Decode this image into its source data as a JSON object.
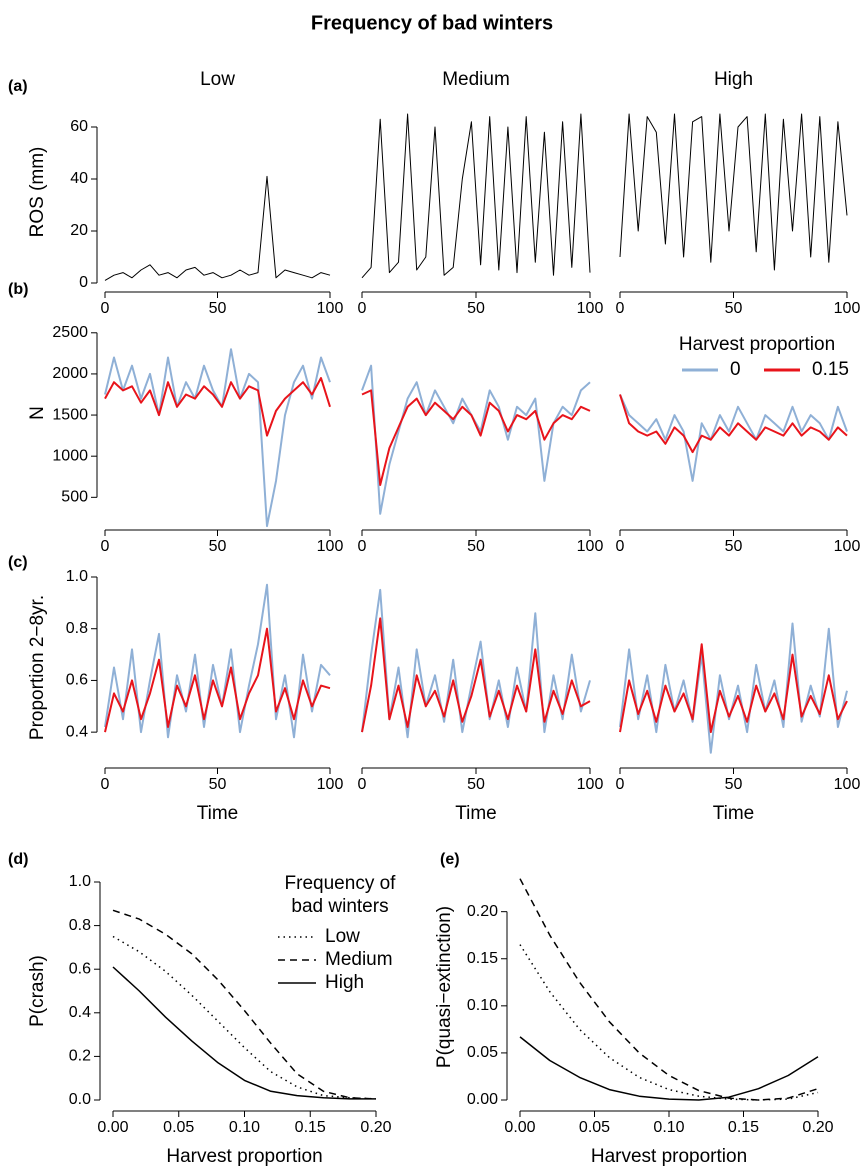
{
  "figure_title": "Frequency of bad winters",
  "chart_data": [
    {
      "type": "line",
      "panel_label": "(a)",
      "title": "Low",
      "ylabel": "ROS (mm)",
      "x": [
        0,
        4,
        8,
        12,
        16,
        20,
        24,
        28,
        32,
        36,
        40,
        44,
        48,
        52,
        56,
        60,
        64,
        68,
        72,
        76,
        80,
        84,
        88,
        92,
        96,
        100
      ],
      "series": [
        {
          "color": "#000000",
          "width": 1,
          "values": [
            1,
            3,
            4,
            2,
            5,
            7,
            3,
            4,
            2,
            5,
            6,
            3,
            4,
            2,
            3,
            5,
            3,
            4,
            41,
            2,
            5,
            4,
            3,
            2,
            4,
            3
          ]
        }
      ],
      "xlim": [
        0,
        100
      ],
      "xticks": [
        0,
        50,
        100
      ],
      "ylim": [
        0,
        70
      ],
      "yticks": [
        0,
        20,
        40,
        60
      ]
    },
    {
      "type": "line",
      "title": "Medium",
      "x": [
        0,
        4,
        8,
        12,
        16,
        20,
        24,
        28,
        32,
        36,
        40,
        44,
        48,
        52,
        56,
        60,
        64,
        68,
        72,
        76,
        80,
        84,
        88,
        92,
        96,
        100
      ],
      "series": [
        {
          "color": "#000000",
          "width": 1,
          "values": [
            2,
            6,
            63,
            4,
            8,
            65,
            5,
            10,
            60,
            3,
            6,
            40,
            62,
            7,
            64,
            5,
            60,
            4,
            64,
            8,
            58,
            3,
            62,
            6,
            65,
            4
          ]
        }
      ],
      "xlim": [
        0,
        100
      ],
      "xticks": [
        0,
        50,
        100
      ],
      "ylim": [
        0,
        70
      ],
      "yticks": []
    },
    {
      "type": "line",
      "title": "High",
      "x": [
        0,
        4,
        8,
        12,
        16,
        20,
        24,
        28,
        32,
        36,
        40,
        44,
        48,
        52,
        56,
        60,
        64,
        68,
        72,
        76,
        80,
        84,
        88,
        92,
        96,
        100
      ],
      "series": [
        {
          "color": "#000000",
          "width": 1,
          "values": [
            10,
            65,
            20,
            64,
            58,
            15,
            65,
            10,
            62,
            64,
            8,
            65,
            20,
            60,
            64,
            12,
            65,
            5,
            63,
            20,
            65,
            10,
            64,
            8,
            62,
            26
          ]
        }
      ],
      "xlim": [
        0,
        100
      ],
      "xticks": [
        0,
        50,
        100
      ],
      "ylim": [
        0,
        70
      ],
      "yticks": []
    },
    {
      "type": "line",
      "panel_label": "(b)",
      "ylabel": "N",
      "x": [
        0,
        4,
        8,
        12,
        16,
        20,
        24,
        28,
        32,
        36,
        40,
        44,
        48,
        52,
        56,
        60,
        64,
        68,
        72,
        76,
        80,
        84,
        88,
        92,
        96,
        100
      ],
      "series": [
        {
          "color": "#8fb0d6",
          "width": 2,
          "values": [
            1750,
            2200,
            1800,
            2100,
            1700,
            2000,
            1500,
            2200,
            1600,
            1900,
            1700,
            2100,
            1800,
            1600,
            2300,
            1700,
            2000,
            1900,
            150,
            700,
            1500,
            1900,
            2100,
            1700,
            2200,
            1900
          ]
        },
        {
          "color": "#e8141b",
          "width": 2,
          "values": [
            1700,
            1900,
            1800,
            1850,
            1650,
            1800,
            1500,
            1900,
            1600,
            1750,
            1700,
            1850,
            1750,
            1600,
            1900,
            1700,
            1850,
            1800,
            1250,
            1550,
            1700,
            1800,
            1900,
            1750,
            1950,
            1600
          ]
        }
      ],
      "xlim": [
        0,
        100
      ],
      "xticks": [
        0,
        50,
        100
      ],
      "ylim": [
        200,
        2850
      ],
      "yticks": [
        500,
        1000,
        1500,
        2000,
        2500
      ]
    },
    {
      "type": "line",
      "x": [
        0,
        4,
        8,
        12,
        16,
        20,
        24,
        28,
        32,
        36,
        40,
        44,
        48,
        52,
        56,
        60,
        64,
        68,
        72,
        76,
        80,
        84,
        88,
        92,
        96,
        100
      ],
      "series": [
        {
          "color": "#8fb0d6",
          "width": 2,
          "values": [
            1800,
            2100,
            300,
            900,
            1300,
            1700,
            1900,
            1500,
            1800,
            1600,
            1400,
            1700,
            1500,
            1300,
            1800,
            1600,
            1200,
            1600,
            1500,
            1700,
            700,
            1400,
            1600,
            1500,
            1800,
            1900
          ]
        },
        {
          "color": "#e8141b",
          "width": 2,
          "values": [
            1750,
            1800,
            650,
            1100,
            1350,
            1600,
            1700,
            1500,
            1650,
            1550,
            1450,
            1600,
            1500,
            1250,
            1650,
            1550,
            1300,
            1500,
            1450,
            1550,
            1200,
            1400,
            1500,
            1450,
            1600,
            1550
          ]
        }
      ],
      "xlim": [
        0,
        100
      ],
      "xticks": [
        0,
        50,
        100
      ],
      "ylim": [
        200,
        2850
      ],
      "yticks": []
    },
    {
      "type": "line",
      "legend_title": "Harvest proportion",
      "x": [
        0,
        4,
        8,
        12,
        16,
        20,
        24,
        28,
        32,
        36,
        40,
        44,
        48,
        52,
        56,
        60,
        64,
        68,
        72,
        76,
        80,
        84,
        88,
        92,
        96,
        100
      ],
      "series": [
        {
          "name": "0",
          "color": "#8fb0d6",
          "width": 2,
          "values": [
            1750,
            1500,
            1400,
            1300,
            1450,
            1200,
            1500,
            1300,
            700,
            1400,
            1200,
            1500,
            1300,
            1600,
            1400,
            1200,
            1500,
            1400,
            1300,
            1600,
            1300,
            1500,
            1400,
            1200,
            1600,
            1300
          ]
        },
        {
          "name": "0.15",
          "color": "#e8141b",
          "width": 2,
          "values": [
            1750,
            1400,
            1300,
            1250,
            1300,
            1150,
            1350,
            1250,
            1050,
            1250,
            1200,
            1350,
            1250,
            1400,
            1300,
            1200,
            1350,
            1300,
            1250,
            1400,
            1250,
            1350,
            1300,
            1200,
            1350,
            1250
          ]
        }
      ],
      "xlim": [
        0,
        100
      ],
      "xticks": [
        0,
        50,
        100
      ],
      "ylim": [
        200,
        2850
      ],
      "yticks": []
    },
    {
      "type": "line",
      "panel_label": "(c)",
      "ylabel": "Proportion 2−8yr.",
      "xlabel": "Time",
      "x": [
        0,
        4,
        8,
        12,
        16,
        20,
        24,
        28,
        32,
        36,
        40,
        44,
        48,
        52,
        56,
        60,
        64,
        68,
        72,
        76,
        80,
        84,
        88,
        92,
        96,
        100
      ],
      "series": [
        {
          "color": "#8fb0d6",
          "width": 2,
          "values": [
            0.42,
            0.65,
            0.45,
            0.72,
            0.4,
            0.6,
            0.78,
            0.38,
            0.62,
            0.48,
            0.7,
            0.42,
            0.66,
            0.5,
            0.72,
            0.4,
            0.58,
            0.74,
            0.97,
            0.45,
            0.62,
            0.38,
            0.7,
            0.48,
            0.66,
            0.62
          ]
        },
        {
          "color": "#e8141b",
          "width": 2,
          "values": [
            0.4,
            0.55,
            0.48,
            0.6,
            0.45,
            0.55,
            0.68,
            0.42,
            0.58,
            0.5,
            0.62,
            0.45,
            0.6,
            0.5,
            0.65,
            0.45,
            0.55,
            0.62,
            0.8,
            0.48,
            0.57,
            0.45,
            0.6,
            0.5,
            0.58,
            0.57
          ]
        }
      ],
      "xlim": [
        0,
        100
      ],
      "xticks": [
        0,
        50,
        100
      ],
      "ylim": [
        0.3,
        1.0
      ],
      "yticks": [
        0.4,
        0.6,
        0.8,
        {
          "value": 1.0,
          "label": "1.0"
        }
      ]
    },
    {
      "type": "line",
      "xlabel": "Time",
      "x": [
        0,
        4,
        8,
        12,
        16,
        20,
        24,
        28,
        32,
        36,
        40,
        44,
        48,
        52,
        56,
        60,
        64,
        68,
        72,
        76,
        80,
        84,
        88,
        92,
        96,
        100
      ],
      "series": [
        {
          "color": "#8fb0d6",
          "width": 2,
          "values": [
            0.4,
            0.7,
            0.95,
            0.45,
            0.65,
            0.38,
            0.72,
            0.5,
            0.62,
            0.44,
            0.68,
            0.4,
            0.58,
            0.75,
            0.45,
            0.6,
            0.42,
            0.65,
            0.48,
            0.86,
            0.4,
            0.62,
            0.45,
            0.7,
            0.48,
            0.6
          ]
        },
        {
          "color": "#e8141b",
          "width": 2,
          "values": [
            0.4,
            0.58,
            0.84,
            0.45,
            0.58,
            0.42,
            0.62,
            0.5,
            0.56,
            0.46,
            0.6,
            0.44,
            0.54,
            0.68,
            0.46,
            0.56,
            0.45,
            0.58,
            0.48,
            0.72,
            0.44,
            0.56,
            0.47,
            0.6,
            0.5,
            0.52
          ]
        }
      ],
      "xlim": [
        0,
        100
      ],
      "xticks": [
        0,
        50,
        100
      ],
      "ylim": [
        0.3,
        1.0
      ],
      "yticks": []
    },
    {
      "type": "line",
      "xlabel": "Time",
      "x": [
        0,
        4,
        8,
        12,
        16,
        20,
        24,
        28,
        32,
        36,
        40,
        44,
        48,
        52,
        56,
        60,
        64,
        68,
        72,
        76,
        80,
        84,
        88,
        92,
        96,
        100
      ],
      "series": [
        {
          "color": "#8fb0d6",
          "width": 2,
          "values": [
            0.42,
            0.72,
            0.45,
            0.62,
            0.4,
            0.66,
            0.48,
            0.6,
            0.44,
            0.7,
            0.32,
            0.62,
            0.45,
            0.58,
            0.4,
            0.66,
            0.48,
            0.6,
            0.42,
            0.82,
            0.44,
            0.58,
            0.46,
            0.8,
            0.42,
            0.56
          ]
        },
        {
          "color": "#e8141b",
          "width": 2,
          "values": [
            0.4,
            0.6,
            0.47,
            0.56,
            0.44,
            0.58,
            0.48,
            0.55,
            0.45,
            0.74,
            0.4,
            0.56,
            0.46,
            0.54,
            0.44,
            0.58,
            0.48,
            0.55,
            0.45,
            0.7,
            0.46,
            0.54,
            0.47,
            0.62,
            0.45,
            0.52
          ]
        }
      ],
      "xlim": [
        0,
        100
      ],
      "xticks": [
        0,
        50,
        100
      ],
      "ylim": [
        0.3,
        1.0
      ],
      "yticks": []
    },
    {
      "type": "line",
      "panel_label": "(d)",
      "ylabel": "P(crash)",
      "xlabel": "Harvest proportion",
      "legend_title": [
        "Frequency of",
        "bad winters"
      ],
      "x": [
        0,
        0.02,
        0.04,
        0.06,
        0.08,
        0.1,
        0.12,
        0.14,
        0.16,
        0.18,
        0.2
      ],
      "series": [
        {
          "name": "Low",
          "color": "#000000",
          "width": 1.5,
          "dash": "dotted",
          "values": [
            0.75,
            0.68,
            0.59,
            0.48,
            0.36,
            0.24,
            0.13,
            0.06,
            0.02,
            0.01,
            0.005
          ]
        },
        {
          "name": "Medium",
          "color": "#000000",
          "width": 1.5,
          "dash": "dashed",
          "values": [
            0.87,
            0.83,
            0.76,
            0.67,
            0.55,
            0.41,
            0.26,
            0.12,
            0.04,
            0.01,
            0.005
          ]
        },
        {
          "name": "High",
          "color": "#000000",
          "width": 1.5,
          "dash": "solid",
          "values": [
            0.61,
            0.5,
            0.38,
            0.27,
            0.17,
            0.09,
            0.04,
            0.02,
            0.01,
            0.005,
            0.005
          ]
        }
      ],
      "xlim": [
        0,
        0.2
      ],
      "xticks": [
        {
          "value": 0,
          "label": "0.00"
        },
        0.05,
        {
          "value": 0.1,
          "label": "0.10"
        },
        0.15,
        {
          "value": 0.2,
          "label": "0.20"
        }
      ],
      "ylim": [
        0,
        1
      ],
      "yticks": [
        {
          "value": 0,
          "label": "0.0"
        },
        0.2,
        0.4,
        0.6,
        0.8,
        {
          "value": 1,
          "label": "1.0"
        }
      ]
    },
    {
      "type": "line",
      "panel_label": "(e)",
      "ylabel": "P(quasi−extinction)",
      "xlabel": "Harvest proportion",
      "x": [
        0,
        0.02,
        0.04,
        0.06,
        0.08,
        0.1,
        0.12,
        0.14,
        0.16,
        0.18,
        0.2
      ],
      "series": [
        {
          "color": "#000000",
          "width": 1.5,
          "dash": "dotted",
          "values": [
            0.165,
            0.115,
            0.075,
            0.045,
            0.024,
            0.011,
            0.004,
            0.001,
            0,
            0.001,
            0.008
          ]
        },
        {
          "color": "#000000",
          "width": 1.5,
          "dash": "dashed",
          "values": [
            0.235,
            0.175,
            0.125,
            0.083,
            0.05,
            0.026,
            0.01,
            0.002,
            0,
            0.002,
            0.012
          ]
        },
        {
          "color": "#000000",
          "width": 1.5,
          "dash": "solid",
          "values": [
            0.067,
            0.042,
            0.024,
            0.011,
            0.004,
            0.001,
            0,
            0.003,
            0.012,
            0.026,
            0.046
          ]
        }
      ],
      "xlim": [
        0,
        0.2
      ],
      "xticks": [
        {
          "value": 0,
          "label": "0.00"
        },
        0.05,
        {
          "value": 0.1,
          "label": "0.10"
        },
        0.15,
        {
          "value": 0.2,
          "label": "0.20"
        }
      ],
      "ylim": [
        0,
        0.24
      ],
      "yticks": [
        {
          "value": 0,
          "label": "0.00"
        },
        0.05,
        {
          "value": 0.1,
          "label": "0.10"
        },
        0.15,
        {
          "value": 0.2,
          "label": "0.20"
        }
      ]
    }
  ]
}
